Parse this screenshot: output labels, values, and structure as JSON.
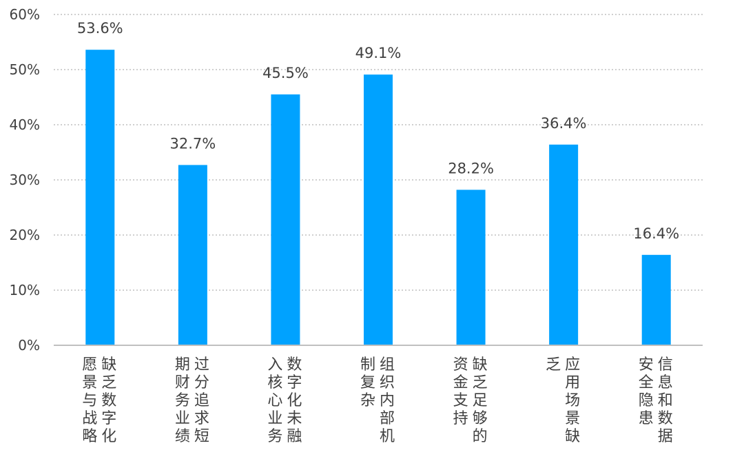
{
  "chart_data": {
    "type": "bar",
    "categories": [
      "缺乏数字化愿景与战略",
      "过分追求短期财务业绩",
      "数字化未融入核心业务",
      "组织内部机制复杂",
      "缺乏足够的资金支持",
      "应用场景缺乏",
      "信息和数据安全隐患"
    ],
    "category_lines": [
      [
        "缺乏数字化",
        "愿景与战略"
      ],
      [
        "过分追求短",
        "期财务业绩"
      ],
      [
        "数字化未融",
        "入核心业务"
      ],
      [
        "组织内部机",
        "制复杂"
      ],
      [
        "缺乏足够的",
        "资金支持"
      ],
      [
        "应用场景缺",
        "乏"
      ],
      [
        "信息和数据",
        "安全隐患"
      ]
    ],
    "values": [
      53.6,
      32.7,
      45.5,
      49.1,
      28.2,
      36.4,
      16.4
    ],
    "data_labels": [
      "53.6%",
      "32.7%",
      "45.5%",
      "49.1%",
      "28.2%",
      "36.4%",
      "16.4%"
    ],
    "y_ticks": [
      0,
      10,
      20,
      30,
      40,
      50,
      60
    ],
    "y_tick_labels": [
      "0%",
      "10%",
      "20%",
      "30%",
      "40%",
      "50%",
      "60%"
    ],
    "ylim": [
      0,
      60
    ],
    "grid": true,
    "legend": "none",
    "bar_color": "#00a2ff",
    "grid_color": "#bfbfbf",
    "axis_color": "#bfbfbf",
    "text_color": "#404040"
  }
}
